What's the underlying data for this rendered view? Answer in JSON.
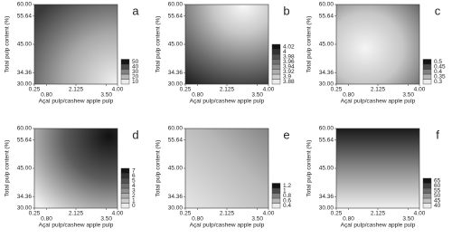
{
  "chart_data": [
    {
      "type": "contour",
      "label": "a",
      "xlabel": "Açaí pulp/cashew apple pulp",
      "ylabel": "Total pulp content (%)",
      "xlim": [
        0.25,
        4.0
      ],
      "ylim": [
        30,
        60
      ],
      "xticks": [
        0.25,
        {
          "value": 0.8,
          "label": "0.80"
        },
        2.125,
        {
          "value": 3.5,
          "label": "3.50"
        },
        {
          "value": 4.0,
          "label": "4.00"
        }
      ],
      "yticks": [
        {
          "value": 30,
          "label": "30.00"
        },
        34.36,
        {
          "value": 45,
          "label": "45.00"
        },
        55.64,
        {
          "value": 60,
          "label": "60.00"
        }
      ],
      "levels": [
        10,
        20,
        30,
        40,
        50
      ]
    },
    {
      "type": "contour",
      "label": "b",
      "xlabel": "Açaí pulp/cashew apple pulp",
      "ylabel": "Total pulp content (%)",
      "xlim": [
        0.25,
        4.0
      ],
      "ylim": [
        30,
        60
      ],
      "xticks": [
        0.25,
        {
          "value": 0.8,
          "label": "0.80"
        },
        2.125,
        {
          "value": 3.5,
          "label": "3.50"
        },
        {
          "value": 4.0,
          "label": "4.00"
        }
      ],
      "yticks": [
        {
          "value": 30,
          "label": "30.00"
        },
        34.36,
        {
          "value": 45,
          "label": "45.00"
        },
        55.64,
        {
          "value": 60,
          "label": "60.00"
        }
      ],
      "levels": [
        3.88,
        3.9,
        3.92,
        3.94,
        3.96,
        3.98,
        4,
        4.02
      ]
    },
    {
      "type": "contour",
      "label": "c",
      "xlabel": "Açaí pulp/cashew apple pulp",
      "ylabel": "Total pulp content (%)",
      "xlim": [
        0.25,
        4.0
      ],
      "ylim": [
        30,
        60
      ],
      "xticks": [
        0.25,
        {
          "value": 0.8,
          "label": "0.80"
        },
        2.125,
        {
          "value": 3.5,
          "label": "3.50"
        },
        {
          "value": 4.0,
          "label": "4.00"
        }
      ],
      "yticks": [
        {
          "value": 30,
          "label": "30.00"
        },
        34.36,
        {
          "value": 45,
          "label": "45.00"
        },
        55.64,
        {
          "value": 60,
          "label": "60.00"
        }
      ],
      "levels": [
        0.3,
        0.35,
        0.4,
        0.45,
        0.5
      ]
    },
    {
      "type": "contour",
      "label": "d",
      "xlabel": "Açaí pulp/cashew apple pulp",
      "ylabel": "Total pulp content (%)",
      "xlim": [
        0.25,
        4.0
      ],
      "ylim": [
        30,
        60
      ],
      "xticks": [
        0.25,
        {
          "value": 0.8,
          "label": "0.80"
        },
        2.125,
        {
          "value": 3.5,
          "label": "3.50"
        },
        {
          "value": 4.0,
          "label": "4.00"
        }
      ],
      "yticks": [
        {
          "value": 30,
          "label": "30.00"
        },
        34.36,
        {
          "value": 45,
          "label": "45.00"
        },
        55.64,
        {
          "value": 60,
          "label": "60.00"
        }
      ],
      "levels": [
        0,
        1,
        2,
        3,
        4,
        5,
        6,
        7
      ]
    },
    {
      "type": "contour",
      "label": "e",
      "xlabel": "Açaí pulp/cashew apple pulp",
      "ylabel": "Total pulp content (%)",
      "xlim": [
        0.25,
        4.0
      ],
      "ylim": [
        30,
        60
      ],
      "xticks": [
        0.25,
        {
          "value": 0.8,
          "label": "0.80"
        },
        2.125,
        {
          "value": 3.5,
          "label": "3.50"
        },
        {
          "value": 4.0,
          "label": "4.00"
        }
      ],
      "yticks": [
        {
          "value": 30,
          "label": "30.00"
        },
        34.36,
        {
          "value": 45,
          "label": "45.00"
        },
        55.64,
        {
          "value": 60,
          "label": "60.00"
        }
      ],
      "levels": [
        0.4,
        0.6,
        0.8,
        1,
        1.2
      ]
    },
    {
      "type": "contour",
      "label": "f",
      "xlabel": "Açaí pulp/cashew apple pulp",
      "ylabel": "Total pulp content (%)",
      "xlim": [
        0.25,
        4.0
      ],
      "ylim": [
        30,
        60
      ],
      "xticks": [
        0.25,
        {
          "value": 0.8,
          "label": "0.80"
        },
        2.125,
        {
          "value": 3.5,
          "label": "3.50"
        },
        {
          "value": 4.0,
          "label": "4.00"
        }
      ],
      "yticks": [
        {
          "value": 30,
          "label": "30.00"
        },
        34.36,
        {
          "value": 45,
          "label": "45.00"
        },
        55.64,
        {
          "value": 60,
          "label": "60.00"
        }
      ],
      "levels": [
        40,
        45,
        50,
        55,
        60,
        65
      ]
    }
  ]
}
